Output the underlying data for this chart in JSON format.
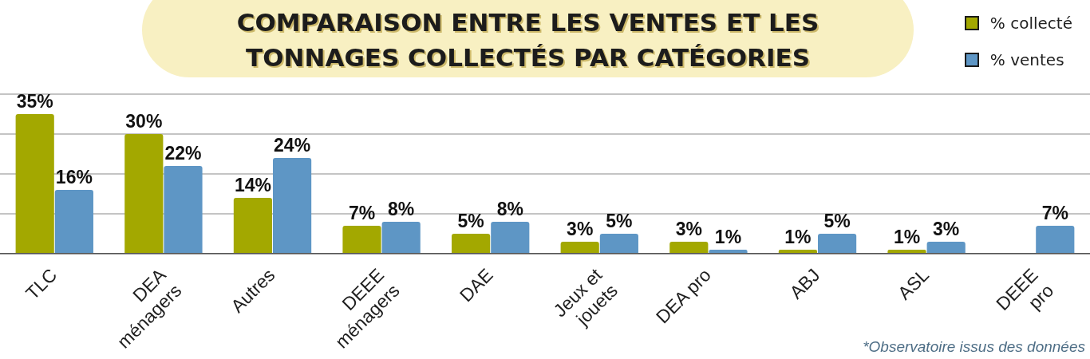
{
  "chart_data": {
    "type": "bar",
    "title": "COMPARAISON ENTRE LES VENTES ET LES TONNAGES COLLECTÉS PAR CATÉGORIES",
    "categories": [
      "TLC",
      "DEA ménagers",
      "Autres",
      "DEEE ménagers",
      "DAE",
      "Jeux et jouets",
      "DEA pro",
      "ABJ",
      "ASL",
      "DEEE pro"
    ],
    "series": [
      {
        "name": "% collecté",
        "color": "#a3a800",
        "values": [
          35,
          30,
          14,
          7,
          5,
          3,
          3,
          1,
          1,
          null
        ],
        "value_labels": [
          "35%",
          "30%",
          "14%",
          "7%",
          "5%",
          "3%",
          "3%",
          "1%",
          "1%",
          null
        ]
      },
      {
        "name": "% ventes",
        "color": "#5e96c5",
        "values": [
          16,
          22,
          24,
          8,
          8,
          5,
          1,
          5,
          3,
          7
        ],
        "value_labels": [
          "16%",
          "22%",
          "24%",
          "8%",
          "8%",
          "5%",
          "1%",
          "5%",
          "3%",
          "7%"
        ]
      }
    ],
    "ylim": [
      0,
      40
    ],
    "yticks": [
      {
        "value": 0,
        "label": null
      },
      {
        "value": 10,
        "label": null
      },
      {
        "value": 20,
        "label": null
      },
      {
        "value": 30,
        "label": null
      },
      {
        "value": 40,
        "label": null
      }
    ],
    "grid": "y",
    "legend": "top right",
    "tick_labels": "x",
    "annotations": [
      "*Observatoire issus des données"
    ]
  }
}
